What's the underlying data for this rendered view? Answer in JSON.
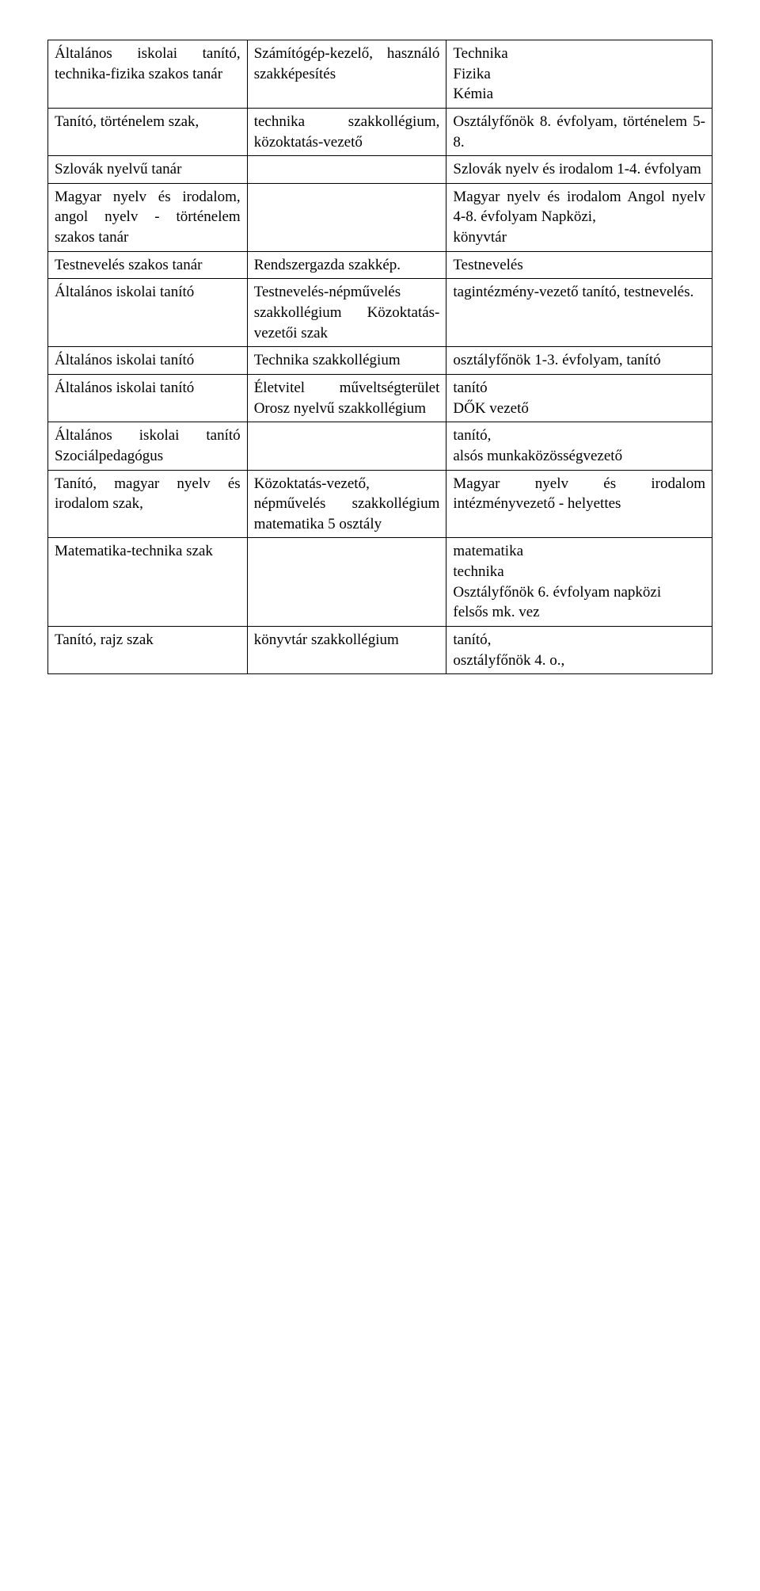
{
  "rows": [
    {
      "c1": "Általános iskolai tanító, technika-fizika szakos tanár",
      "c2": "Számítógép-kezelő, használó szakképesítés",
      "c3": "Technika\nFizika\nKémia"
    },
    {
      "c1": "Tanító, történelem szak,",
      "c2": "technika szakkollégium, közoktatás-vezető",
      "c3": "Osztályfőnök 8. évfolyam, történelem  5-8."
    },
    {
      "c1": "Szlovák nyelvű tanár",
      "c2": "",
      "c3": "Szlovák nyelv és irodalom 1-4. évfolyam"
    },
    {
      "c1": "Magyar nyelv és irodalom, angol nyelv - történelem szakos tanár",
      "c2": "",
      "c3": "Magyar nyelv és irodalom Angol nyelv 4-8. évfolyam Napközi,\nkönyvtár"
    },
    {
      "c1": "Testnevelés szakos tanár",
      "c2": "Rendszergazda szakkép.",
      "c3": "Testnevelés"
    },
    {
      "c1": "Általános iskolai tanító",
      "c2": "Testnevelés-népművelés szakkollégium Közoktatás-vezetői szak",
      "c3": "tagintézmény-vezető tanító, testnevelés."
    },
    {
      "c1": "Általános iskolai tanító",
      "c2": "Technika szakkollégium",
      "c3": "osztályfőnök 1-3. évfolyam, tanító"
    },
    {
      "c1": "Általános iskolai tanító",
      "c2": "Életvitel műveltségterület Orosz nyelvű szakkollégium",
      "c3": "tanító\nDŐK vezető"
    },
    {
      "c1": "Általános iskolai tanító Szociálpedagógus",
      "c2": "",
      "c3": "tanító,\nalsós munkaközösségvezető"
    },
    {
      "c1": "Tanító, magyar nyelv és irodalom szak,",
      "c2": "Közoktatás-vezető, népművelés szakkollégium matematika 5 osztály",
      "c3": "Magyar nyelv és irodalom intézményvezető - helyettes"
    },
    {
      "c1": "Matematika-technika szak",
      "c2": "",
      "c3": "matematika\ntechnika\nOsztályfőnök 6. évfolyam napközi\nfelsős mk. vez"
    },
    {
      "c1": "Tanító, rajz szak",
      "c2": "könyvtár szakkollégium",
      "c3": "tanító,\nosztályfőnök 4. o.,"
    }
  ]
}
